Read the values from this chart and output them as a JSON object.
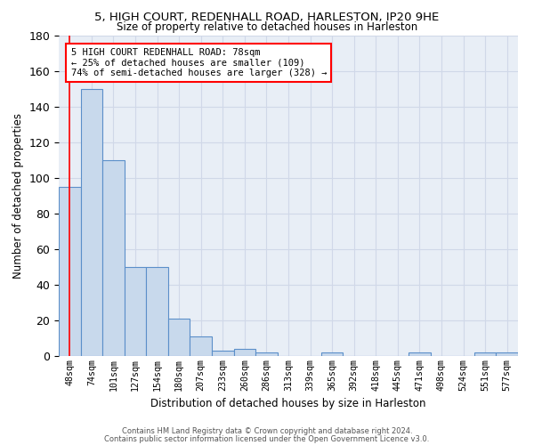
{
  "title1": "5, HIGH COURT, REDENHALL ROAD, HARLESTON, IP20 9HE",
  "title2": "Size of property relative to detached houses in Harleston",
  "xlabel": "Distribution of detached houses by size in Harleston",
  "ylabel": "Number of detached properties",
  "bar_color": "#c8d9ec",
  "bar_edge_color": "#5b8fc9",
  "bg_color": "#e8eef6",
  "grid_color": "#d0d8e8",
  "categories": [
    "48sqm",
    "74sqm",
    "101sqm",
    "127sqm",
    "154sqm",
    "180sqm",
    "207sqm",
    "233sqm",
    "260sqm",
    "286sqm",
    "313sqm",
    "339sqm",
    "365sqm",
    "392sqm",
    "418sqm",
    "445sqm",
    "471sqm",
    "498sqm",
    "524sqm",
    "551sqm",
    "577sqm"
  ],
  "values": [
    95,
    150,
    110,
    50,
    50,
    21,
    11,
    3,
    4,
    2,
    0,
    0,
    2,
    0,
    0,
    0,
    2,
    0,
    0,
    2,
    2
  ],
  "ylim": [
    0,
    180
  ],
  "yticks": [
    0,
    20,
    40,
    60,
    80,
    100,
    120,
    140,
    160,
    180
  ],
  "property_line_x": 0.5,
  "annotation_text": "5 HIGH COURT REDENHALL ROAD: 78sqm\n← 25% of detached houses are smaller (109)\n74% of semi-detached houses are larger (328) →",
  "footer1": "Contains HM Land Registry data © Crown copyright and database right 2024.",
  "footer2": "Contains public sector information licensed under the Open Government Licence v3.0."
}
